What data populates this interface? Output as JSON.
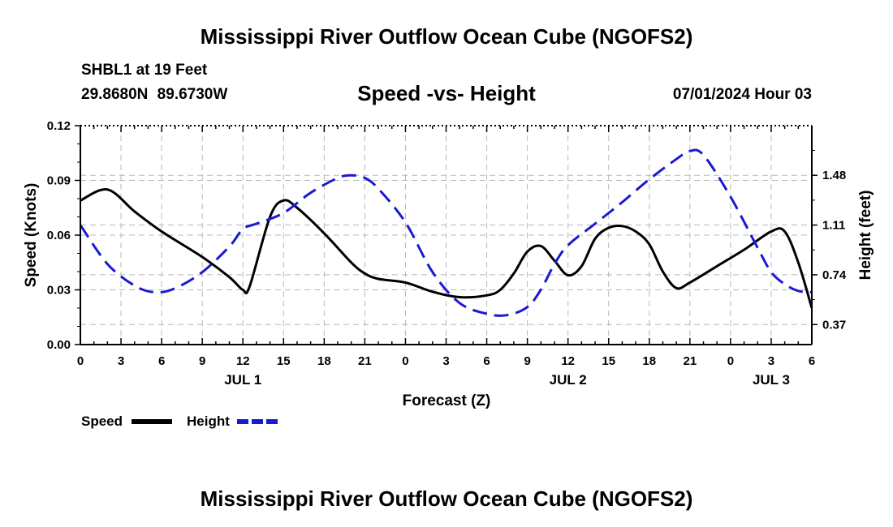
{
  "header": {
    "title": "Mississippi River Outflow Ocean Cube (NGOFS2)",
    "station": "SHBL1 at 19 Feet",
    "coords": "29.8680N  89.6730W",
    "subtitle": "Speed -vs- Height",
    "datetime": "07/01/2024 Hour 03"
  },
  "footer": {
    "title": "Mississippi River Outflow Ocean Cube (NGOFS2)"
  },
  "chart_data": {
    "type": "line",
    "xlabel": "Forecast (Z)",
    "ylabel": "Speed (Knots)",
    "y2label": "Height (feet)",
    "x_range": [
      0,
      54
    ],
    "ylim": [
      0,
      0.12
    ],
    "y2lim": [
      0.221,
      1.849
    ],
    "x_ticks": [
      0,
      3,
      6,
      9,
      12,
      15,
      18,
      21,
      24,
      27,
      30,
      33,
      36,
      39,
      42,
      45,
      48,
      51,
      54
    ],
    "x_tick_labels": [
      "0",
      "3",
      "6",
      "9",
      "12",
      "15",
      "18",
      "21",
      "0",
      "3",
      "6",
      "9",
      "12",
      "15",
      "18",
      "21",
      "0",
      "3",
      "6"
    ],
    "y_ticks": [
      0,
      0.03,
      0.06,
      0.09,
      0.12
    ],
    "y_tick_labels": [
      "0.00",
      "0.03",
      "0.06",
      "0.09",
      "0.12"
    ],
    "y2_ticks": [
      0.37,
      0.74,
      1.11,
      1.48
    ],
    "y2_tick_labels": [
      "0.37",
      "0.74",
      "1.11",
      "1.48"
    ],
    "day_labels": [
      {
        "x": 12,
        "label": "JUL 1"
      },
      {
        "x": 36,
        "label": "JUL 2"
      },
      {
        "x": 51,
        "label": "JUL 3"
      }
    ],
    "grid": true,
    "series": [
      {
        "name": "Speed",
        "axis": "left",
        "color": "#000000",
        "dash": "solid",
        "x": [
          0,
          2,
          4,
          6,
          9,
          11,
          12,
          12.5,
          14,
          15,
          16,
          18,
          20,
          21,
          22,
          24,
          26,
          28,
          30,
          31,
          32,
          33,
          34,
          35,
          36,
          37,
          38,
          39,
          40,
          41,
          42,
          43,
          44,
          45,
          47,
          49,
          51,
          52,
          53,
          54
        ],
        "values": [
          0.079,
          0.085,
          0.073,
          0.062,
          0.048,
          0.037,
          0.03,
          0.032,
          0.07,
          0.079,
          0.075,
          0.061,
          0.045,
          0.039,
          0.036,
          0.034,
          0.029,
          0.026,
          0.027,
          0.03,
          0.039,
          0.051,
          0.054,
          0.046,
          0.038,
          0.043,
          0.058,
          0.064,
          0.065,
          0.062,
          0.055,
          0.04,
          0.031,
          0.034,
          0.043,
          0.052,
          0.062,
          0.062,
          0.045,
          0.02
        ]
      },
      {
        "name": "Height",
        "axis": "right",
        "color": "#1a1ad2",
        "dash": "dashed",
        "x": [
          0,
          2,
          4,
          5.5,
          7,
          9,
          11,
          12,
          13,
          15,
          17,
          19,
          20,
          21,
          22,
          24,
          26,
          28,
          30,
          31.5,
          33,
          34,
          35,
          36,
          38,
          40,
          42,
          44,
          45,
          46,
          48,
          50,
          51,
          52,
          53,
          54
        ],
        "values": [
          1.11,
          0.82,
          0.66,
          0.61,
          0.64,
          0.76,
          0.95,
          1.08,
          1.12,
          1.2,
          1.35,
          1.46,
          1.48,
          1.46,
          1.38,
          1.13,
          0.76,
          0.53,
          0.45,
          0.44,
          0.5,
          0.63,
          0.82,
          0.96,
          1.12,
          1.28,
          1.45,
          1.6,
          1.66,
          1.63,
          1.32,
          0.94,
          0.76,
          0.67,
          0.62,
          0.61
        ]
      }
    ],
    "legend": {
      "placement": "bottom-left",
      "entries": [
        "Speed",
        "Height"
      ]
    }
  }
}
